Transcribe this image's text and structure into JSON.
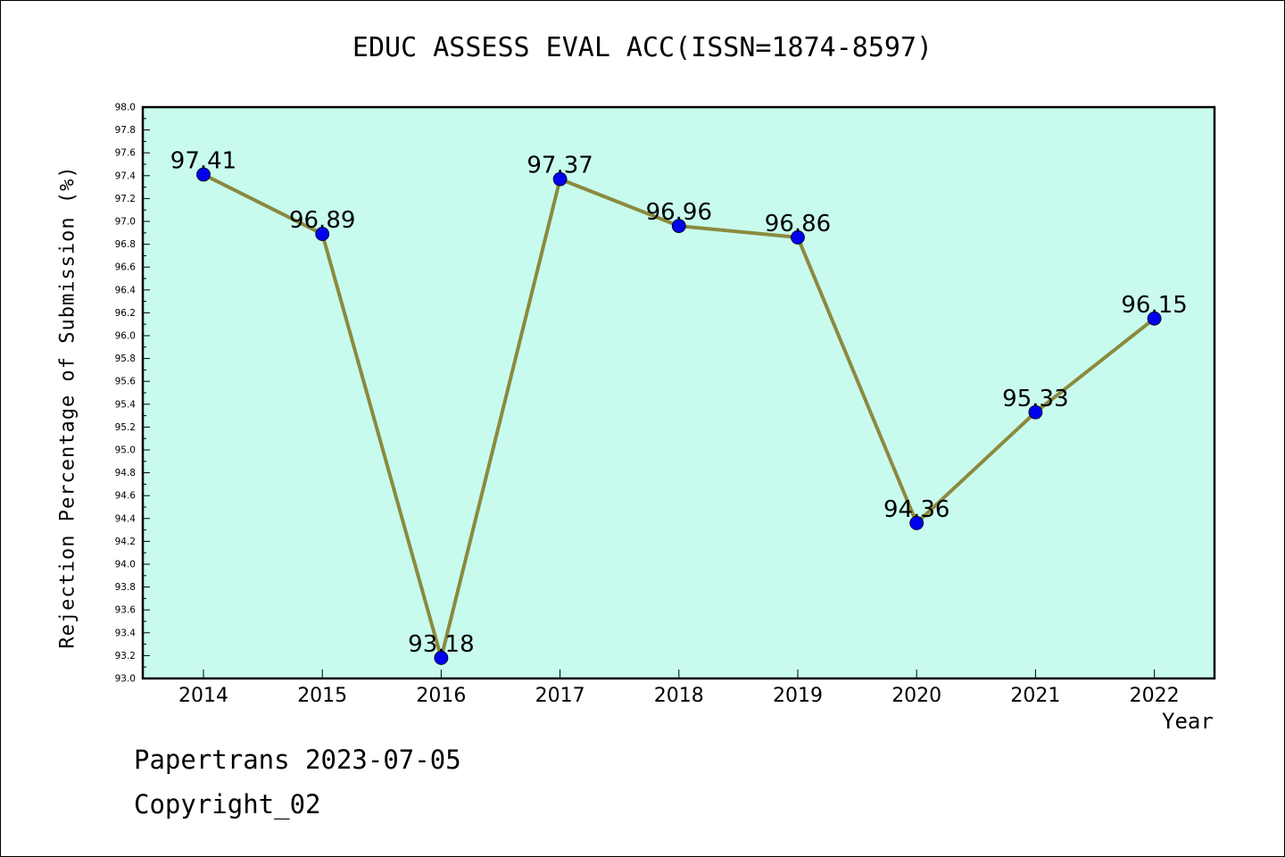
{
  "chart_data": {
    "type": "line",
    "title": "EDUC ASSESS EVAL ACC(ISSN=1874-8597)",
    "xlabel": "Year",
    "ylabel": "Rejection Percentage of Submission (%)",
    "categories": [
      "2014",
      "2015",
      "2016",
      "2017",
      "2018",
      "2019",
      "2020",
      "2021",
      "2022"
    ],
    "series": [
      {
        "values": [
          97.41,
          96.89,
          93.18,
          97.37,
          96.96,
          96.86,
          94.36,
          95.33,
          96.15
        ],
        "data_labels": [
          "97.41",
          "96.89",
          "93.18",
          "97.37",
          "96.96",
          "96.86",
          "94.36",
          "95.33",
          "96.15"
        ]
      }
    ],
    "ylim": [
      93.0,
      98.0
    ],
    "yticks": [
      "93.0",
      "93.2",
      "93.4",
      "93.6",
      "93.8",
      "94.0",
      "94.2",
      "94.4",
      "94.6",
      "94.8",
      "95.0",
      "95.2",
      "95.4",
      "95.6",
      "95.8",
      "96.0",
      "96.2",
      "96.4",
      "96.6",
      "96.8",
      "97.0",
      "97.2",
      "97.4",
      "97.6",
      "97.8",
      "98.0"
    ],
    "grid": false,
    "colors": {
      "plot_background": "#c8fbee",
      "line": "#8b8a3e",
      "marker": "#0000ee"
    }
  },
  "footer": {
    "line1": "Papertrans 2023-07-05",
    "line2": "Copyright_02"
  }
}
